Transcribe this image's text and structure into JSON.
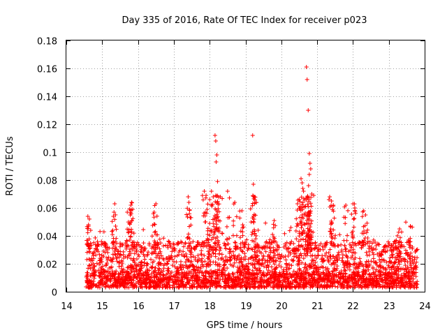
{
  "chart_data": {
    "type": "scatter",
    "title": "Day 335 of 2016, Rate Of TEC Index for receiver p023",
    "xlabel": "GPS time / hours",
    "ylabel": "ROTI / TECUs",
    "xlim": [
      14,
      24
    ],
    "ylim": [
      0,
      0.18
    ],
    "grid": true,
    "marker": "plus",
    "series_color": "#ff0000",
    "x_ticks": [
      "14",
      "15",
      "16",
      "17",
      "18",
      "19",
      "20",
      "21",
      "22",
      "23",
      "24"
    ],
    "y_ticks": [
      "0",
      "0.02",
      "0.04",
      "0.06",
      "0.08",
      "0.1",
      "0.12",
      "0.14",
      "0.16",
      "0.18"
    ],
    "x_range": [
      14.55,
      23.8
    ],
    "background_band": [
      0.003,
      0.036
    ],
    "peaks": [
      {
        "x": 14.6,
        "y": 0.054
      },
      {
        "x": 14.62,
        "y": 0.047
      },
      {
        "x": 15.35,
        "y": 0.063
      },
      {
        "x": 15.33,
        "y": 0.057
      },
      {
        "x": 15.7,
        "y": 0.057
      },
      {
        "x": 15.8,
        "y": 0.062
      },
      {
        "x": 15.82,
        "y": 0.064
      },
      {
        "x": 15.85,
        "y": 0.059
      },
      {
        "x": 16.5,
        "y": 0.063
      },
      {
        "x": 16.45,
        "y": 0.057
      },
      {
        "x": 17.4,
        "y": 0.068
      },
      {
        "x": 17.42,
        "y": 0.064
      },
      {
        "x": 17.85,
        "y": 0.072
      },
      {
        "x": 17.9,
        "y": 0.069
      },
      {
        "x": 18.0,
        "y": 0.066
      },
      {
        "x": 18.05,
        "y": 0.072
      },
      {
        "x": 18.1,
        "y": 0.068
      },
      {
        "x": 18.15,
        "y": 0.112
      },
      {
        "x": 18.17,
        "y": 0.108
      },
      {
        "x": 18.2,
        "y": 0.098
      },
      {
        "x": 18.18,
        "y": 0.093
      },
      {
        "x": 18.22,
        "y": 0.079
      },
      {
        "x": 18.3,
        "y": 0.068
      },
      {
        "x": 18.5,
        "y": 0.072
      },
      {
        "x": 18.7,
        "y": 0.064
      },
      {
        "x": 18.9,
        "y": 0.058
      },
      {
        "x": 19.2,
        "y": 0.112
      },
      {
        "x": 19.22,
        "y": 0.077
      },
      {
        "x": 19.25,
        "y": 0.068
      },
      {
        "x": 19.3,
        "y": 0.064
      },
      {
        "x": 19.8,
        "y": 0.051
      },
      {
        "x": 20.45,
        "y": 0.063
      },
      {
        "x": 20.5,
        "y": 0.066
      },
      {
        "x": 20.55,
        "y": 0.081
      },
      {
        "x": 20.58,
        "y": 0.078
      },
      {
        "x": 20.6,
        "y": 0.074
      },
      {
        "x": 20.62,
        "y": 0.072
      },
      {
        "x": 20.7,
        "y": 0.161
      },
      {
        "x": 20.72,
        "y": 0.152
      },
      {
        "x": 20.75,
        "y": 0.13
      },
      {
        "x": 20.78,
        "y": 0.099
      },
      {
        "x": 20.8,
        "y": 0.092
      },
      {
        "x": 20.82,
        "y": 0.088
      },
      {
        "x": 20.78,
        "y": 0.084
      },
      {
        "x": 20.76,
        "y": 0.076
      },
      {
        "x": 20.85,
        "y": 0.07
      },
      {
        "x": 20.7,
        "y": 0.066
      },
      {
        "x": 21.35,
        "y": 0.068
      },
      {
        "x": 21.4,
        "y": 0.065
      },
      {
        "x": 21.45,
        "y": 0.062
      },
      {
        "x": 21.8,
        "y": 0.062
      },
      {
        "x": 22.0,
        "y": 0.063
      },
      {
        "x": 22.05,
        "y": 0.06
      },
      {
        "x": 22.3,
        "y": 0.058
      },
      {
        "x": 22.35,
        "y": 0.055
      },
      {
        "x": 23.3,
        "y": 0.045
      },
      {
        "x": 23.6,
        "y": 0.047
      }
    ]
  }
}
